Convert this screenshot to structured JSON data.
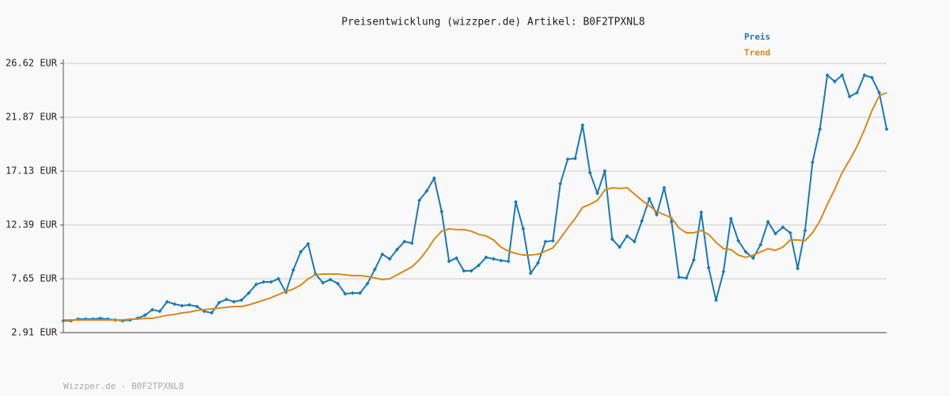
{
  "chart_data": {
    "type": "line",
    "title": "Preisentwicklung (wizzper.de) Artikel: B0F2TPXNL8",
    "footer": "Wizzper.de - B0F2TPXNL8",
    "categories": [
      null,
      null,
      null,
      null,
      null,
      null,
      null,
      null,
      null,
      null,
      null,
      null,
      null,
      null,
      null,
      null,
      null,
      null,
      null,
      null,
      null,
      null,
      null,
      null,
      null,
      null,
      null,
      null,
      null,
      null,
      null,
      null,
      null,
      null,
      null,
      null,
      null,
      null,
      null,
      null,
      null,
      null,
      null,
      null,
      null,
      null,
      null,
      null,
      null,
      null,
      null,
      null,
      null,
      null,
      null,
      null,
      null,
      null,
      null,
      null,
      null,
      null,
      null,
      null,
      null,
      null,
      null,
      null,
      null,
      null,
      null,
      null,
      null,
      null,
      null,
      null,
      null,
      null,
      null,
      null,
      null,
      null,
      null,
      null,
      null,
      null,
      null,
      null,
      null,
      null,
      null,
      null,
      null,
      null,
      null,
      null,
      null,
      null,
      null,
      null,
      null,
      null,
      null,
      null,
      null,
      null,
      null,
      null,
      null,
      null,
      null,
      null
    ],
    "series": [
      {
        "name": "Preis",
        "color": "#1a7ab5",
        "markers": true,
        "values": [
          3.96,
          3.96,
          4.1,
          4.1,
          4.1,
          4.17,
          4.1,
          4.03,
          3.96,
          4.03,
          4.17,
          4.44,
          4.93,
          4.79,
          5.63,
          5.42,
          5.28,
          5.35,
          5.21,
          4.79,
          4.65,
          5.56,
          5.84,
          5.63,
          5.77,
          6.4,
          7.16,
          7.37,
          7.37,
          7.65,
          6.47,
          8.42,
          10.02,
          10.72,
          8.07,
          7.3,
          7.58,
          7.23,
          6.33,
          6.4,
          6.4,
          7.23,
          8.49,
          9.81,
          9.4,
          10.23,
          10.93,
          10.79,
          14.56,
          15.39,
          16.51,
          13.58,
          9.19,
          9.47,
          8.35,
          8.35,
          8.84,
          9.54,
          9.4,
          9.26,
          9.19,
          14.42,
          12.05,
          8.14,
          9.05,
          10.93,
          11.0,
          16.02,
          18.18,
          18.25,
          21.18,
          17.0,
          15.18,
          17.14,
          11.14,
          10.44,
          11.42,
          10.93,
          12.74,
          14.7,
          13.3,
          15.67,
          12.67,
          7.79,
          7.72,
          9.33,
          13.51,
          8.63,
          5.77,
          8.28,
          12.95,
          11.0,
          10.02,
          9.47,
          10.65,
          12.67,
          11.63,
          12.19,
          11.7,
          8.56,
          11.91,
          17.9,
          20.83,
          25.58,
          25.02,
          25.58,
          23.69,
          24.04,
          25.58,
          25.37,
          24.04,
          20.83
        ]
      },
      {
        "name": "Trend",
        "color": "#d8891e",
        "markers": false,
        "values": [
          4.03,
          4.03,
          4.03,
          4.03,
          4.03,
          4.03,
          4.03,
          4.03,
          4.03,
          4.1,
          4.1,
          4.17,
          4.17,
          4.3,
          4.44,
          4.51,
          4.65,
          4.72,
          4.86,
          4.93,
          5.0,
          5.07,
          5.14,
          5.21,
          5.21,
          5.35,
          5.56,
          5.77,
          5.98,
          6.26,
          6.54,
          6.75,
          7.09,
          7.65,
          8.0,
          8.07,
          8.07,
          8.07,
          8.0,
          7.93,
          7.93,
          7.86,
          7.72,
          7.58,
          7.65,
          8.0,
          8.35,
          8.7,
          9.33,
          10.16,
          11.14,
          11.84,
          12.05,
          11.98,
          11.98,
          11.84,
          11.56,
          11.42,
          11.07,
          10.44,
          10.09,
          9.88,
          9.74,
          9.74,
          9.81,
          10.09,
          10.37,
          11.21,
          12.12,
          12.95,
          13.93,
          14.21,
          14.56,
          15.46,
          15.67,
          15.6,
          15.67,
          15.11,
          14.56,
          14.07,
          13.58,
          13.3,
          13.02,
          12.12,
          11.7,
          11.7,
          11.91,
          11.56,
          10.86,
          10.3,
          10.23,
          9.74,
          9.54,
          9.74,
          10.02,
          10.3,
          10.16,
          10.44,
          11.07,
          11.07,
          11.0,
          11.7,
          12.74,
          14.21,
          15.53,
          17.0,
          18.11,
          19.3,
          20.76,
          22.44,
          23.76,
          24.04
        ]
      }
    ],
    "ylim": [
      2.91,
      26.62
    ],
    "yticks": [
      {
        "value": 2.91,
        "label": "2.91 EUR"
      },
      {
        "value": 7.65,
        "label": "7.65 EUR"
      },
      {
        "value": 12.39,
        "label": "12.39 EUR"
      },
      {
        "value": 17.13,
        "label": "17.13 EUR"
      },
      {
        "value": 21.87,
        "label": "21.87 EUR"
      },
      {
        "value": 26.62,
        "label": "26.62 EUR"
      }
    ],
    "grid": true
  }
}
